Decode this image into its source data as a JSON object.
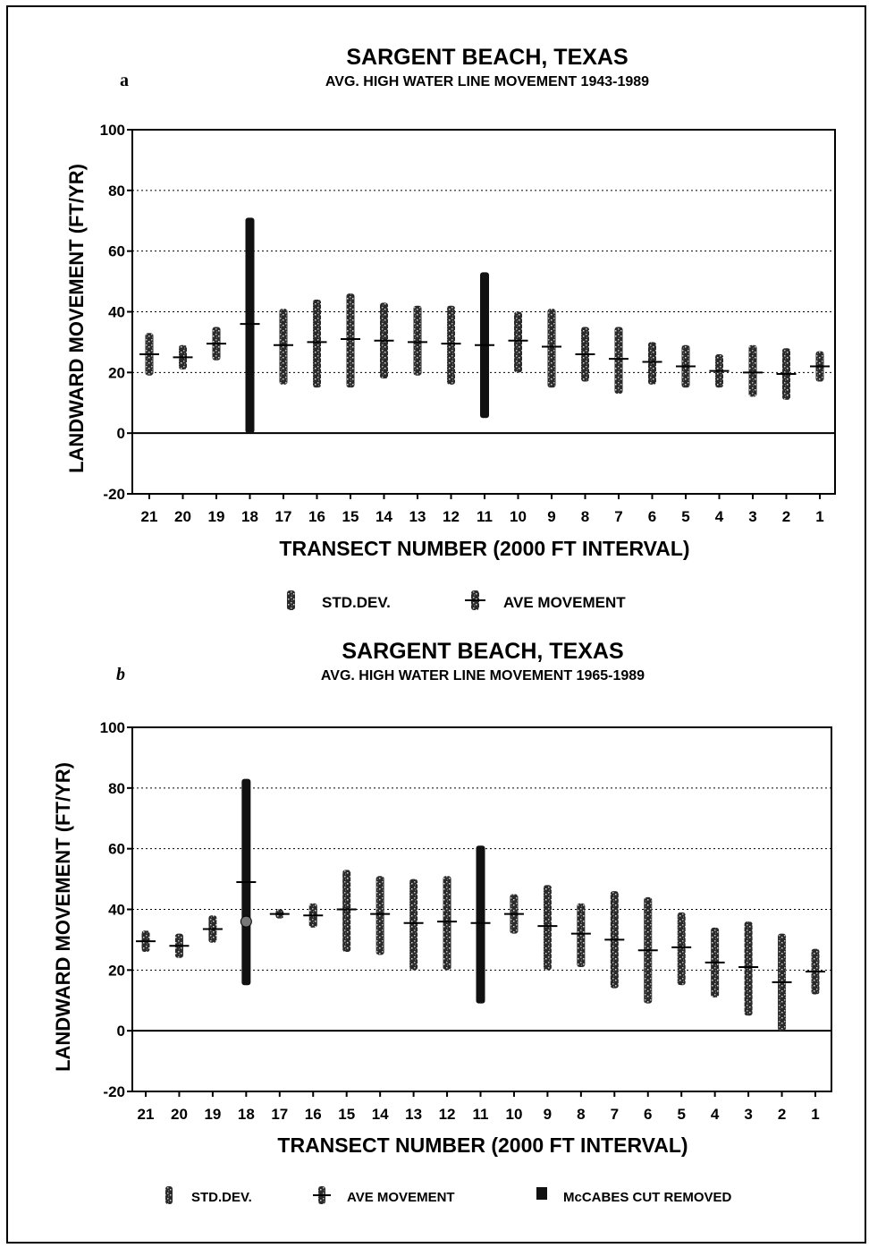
{
  "chart_data": [
    {
      "type": "range-bar",
      "panel_label": "a",
      "title": "SARGENT BEACH, TEXAS",
      "subtitle": "AVG. HIGH WATER LINE MOVEMENT 1943-1989",
      "xlabel": "TRANSECT NUMBER (2000 FT INTERVAL)",
      "ylabel": "LANDWARD MOVEMENT (FT/YR)",
      "ylim": [
        -20,
        100
      ],
      "yticks": [
        "100",
        "80",
        "60",
        "40",
        "20",
        "0",
        "-20"
      ],
      "grid": "dotted horizontal",
      "categories": [
        "21",
        "20",
        "19",
        "18",
        "17",
        "16",
        "15",
        "14",
        "13",
        "12",
        "11",
        "10",
        "9",
        "8",
        "7",
        "6",
        "5",
        "4",
        "3",
        "2",
        "1"
      ],
      "std_low": [
        19,
        21,
        24,
        0,
        16,
        15,
        15,
        18,
        19,
        16,
        5,
        20,
        15,
        17,
        13,
        16,
        15,
        15,
        12,
        11,
        17
      ],
      "std_high": [
        33,
        29,
        35,
        71,
        41,
        44,
        46,
        43,
        42,
        42,
        53,
        40,
        41,
        35,
        35,
        30,
        29,
        26,
        29,
        28,
        27
      ],
      "average": [
        26,
        25,
        29.5,
        36,
        29,
        30,
        31,
        30.5,
        30,
        29.5,
        29,
        30.5,
        28.5,
        26,
        24.5,
        23.5,
        22,
        20.5,
        20,
        19.5,
        22
      ],
      "legend": [
        {
          "label": "STD.DEV."
        },
        {
          "label": "AVE MOVEMENT"
        }
      ]
    },
    {
      "type": "range-bar",
      "panel_label": "b",
      "title": "SARGENT BEACH, TEXAS",
      "subtitle": "AVG. HIGH WATER LINE MOVEMENT 1965-1989",
      "xlabel": "TRANSECT NUMBER (2000 FT INTERVAL)",
      "ylabel": "LANDWARD MOVEMENT (FT/YR)",
      "ylim": [
        -20,
        100
      ],
      "yticks": [
        "100",
        "80",
        "60",
        "40",
        "20",
        "0",
        "-20"
      ],
      "grid": "dotted horizontal",
      "categories": [
        "21",
        "20",
        "19",
        "18",
        "17",
        "16",
        "15",
        "14",
        "13",
        "12",
        "11",
        "10",
        "9",
        "8",
        "7",
        "6",
        "5",
        "4",
        "3",
        "2",
        "1"
      ],
      "std_low": [
        26,
        24,
        29,
        15,
        37,
        34,
        26,
        25,
        20,
        20,
        9,
        32,
        20,
        21,
        14,
        9,
        15,
        11,
        5,
        0,
        12
      ],
      "std_high": [
        33,
        32,
        38,
        83,
        40,
        42,
        53,
        51,
        50,
        51,
        61,
        45,
        48,
        42,
        46,
        44,
        39,
        34,
        36,
        32,
        27
      ],
      "average": [
        29.5,
        28,
        33.5,
        49,
        38.5,
        38,
        40,
        38.5,
        35.5,
        36,
        35.5,
        38.5,
        34.5,
        32,
        30,
        26.5,
        27.5,
        22.5,
        21,
        16,
        19.5
      ],
      "mccabes_cut_removed": {
        "category": "18",
        "value": 36
      },
      "legend": [
        {
          "label": "STD.DEV."
        },
        {
          "label": "AVE MOVEMENT"
        },
        {
          "label": "McCABES CUT REMOVED"
        }
      ]
    }
  ]
}
